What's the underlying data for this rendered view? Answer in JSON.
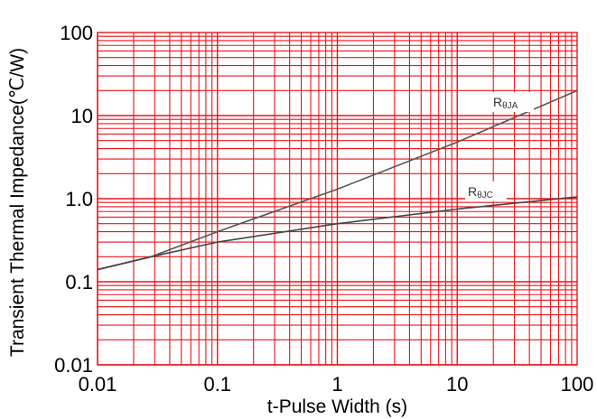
{
  "chart_data": {
    "type": "line",
    "xlabel": "t-Pulse Width (s)",
    "ylabel": "Transient Thermal Impedance(℃/W)",
    "xscale": "log",
    "yscale": "log",
    "xlim": [
      0.01,
      100
    ],
    "ylim": [
      0.01,
      100
    ],
    "x_ticks": [
      0.01,
      0.1,
      1,
      10,
      100
    ],
    "x_tick_labels": [
      "0.01",
      "0.1",
      "1",
      "10",
      "100"
    ],
    "y_ticks": [
      0.01,
      0.1,
      1,
      10,
      100
    ],
    "y_tick_labels": [
      "0.01",
      "0.1",
      "1.0",
      "10",
      "100"
    ],
    "grid": true,
    "grid_color": "#e8151b",
    "series": [
      {
        "name": "RθJA",
        "label_parts": {
          "main": "R",
          "sub": "θJA"
        },
        "color": "#555555",
        "points": [
          {
            "x": 0.01,
            "y": 0.14
          },
          {
            "x": 0.028,
            "y": 0.2
          },
          {
            "x": 0.1,
            "y": 0.4
          },
          {
            "x": 1,
            "y": 1.3
          },
          {
            "x": 10,
            "y": 4.8
          },
          {
            "x": 100,
            "y": 20
          }
        ]
      },
      {
        "name": "RθJC",
        "label_parts": {
          "main": "R",
          "sub": "θJC"
        },
        "color": "#444444",
        "points": [
          {
            "x": 0.01,
            "y": 0.14
          },
          {
            "x": 0.028,
            "y": 0.2
          },
          {
            "x": 0.1,
            "y": 0.3
          },
          {
            "x": 1,
            "y": 0.5
          },
          {
            "x": 10,
            "y": 0.75
          },
          {
            "x": 100,
            "y": 1.05
          }
        ]
      }
    ]
  }
}
